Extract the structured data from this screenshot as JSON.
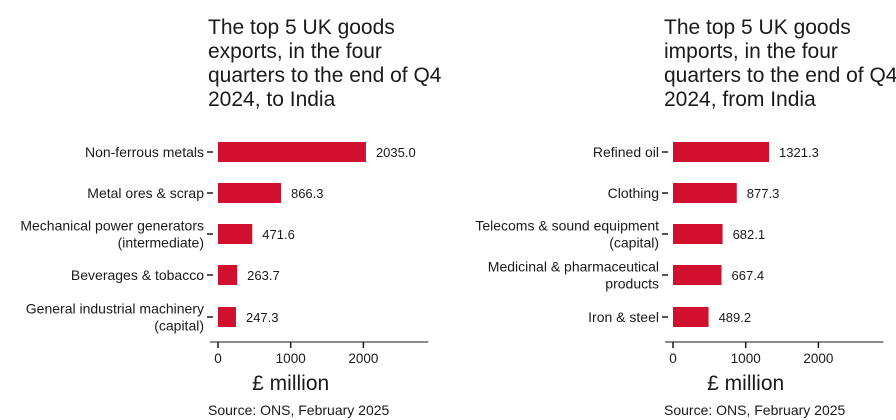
{
  "chart_data": [
    {
      "type": "bar",
      "orientation": "horizontal",
      "title": "The top 5 UK goods exports, in the four quarters to the end of Q4 2024, to India",
      "title_lines": [
        "The top 5 UK goods",
        "exports, in the four",
        "quarters to the end of Q4",
        "2024, to India"
      ],
      "categories": [
        [
          "Non-ferrous metals"
        ],
        [
          "Metal ores & scrap"
        ],
        [
          "Mechanical power generators",
          "(intermediate)"
        ],
        [
          "Beverages & tobacco"
        ],
        [
          "General industrial machinery",
          "(capital)"
        ]
      ],
      "values": [
        2035.0,
        866.3,
        471.6,
        263.7,
        247.3
      ],
      "value_labels": [
        "2035.0",
        "866.3",
        "471.6",
        "263.7",
        "247.3"
      ],
      "xlabel": "£ million",
      "xlim": [
        0,
        2500
      ],
      "xticks": [
        0,
        1000,
        2000
      ],
      "source": "Source: ONS, February 2025",
      "color": "#d0102e"
    },
    {
      "type": "bar",
      "orientation": "horizontal",
      "title": "The top 5 UK goods imports, in the four quarters to the end of Q4 2024, from India",
      "title_lines": [
        "The top 5 UK goods",
        "imports, in the four",
        "quarters to the end of Q4",
        "2024, from India"
      ],
      "categories": [
        [
          "Refined oil"
        ],
        [
          "Clothing"
        ],
        [
          "Telecoms & sound equipment",
          "(capital)"
        ],
        [
          "Medicinal & pharmaceutical",
          "products"
        ],
        [
          "Iron & steel"
        ]
      ],
      "values": [
        1321.3,
        877.3,
        682.1,
        667.4,
        489.2
      ],
      "value_labels": [
        "1321.3",
        "877.3",
        "682.1",
        "667.4",
        "489.2"
      ],
      "xlabel": "£ million",
      "xlim": [
        0,
        2500
      ],
      "xticks": [
        0,
        1000,
        2000
      ],
      "source": "Source: ONS, February 2025",
      "color": "#d0102e"
    }
  ]
}
